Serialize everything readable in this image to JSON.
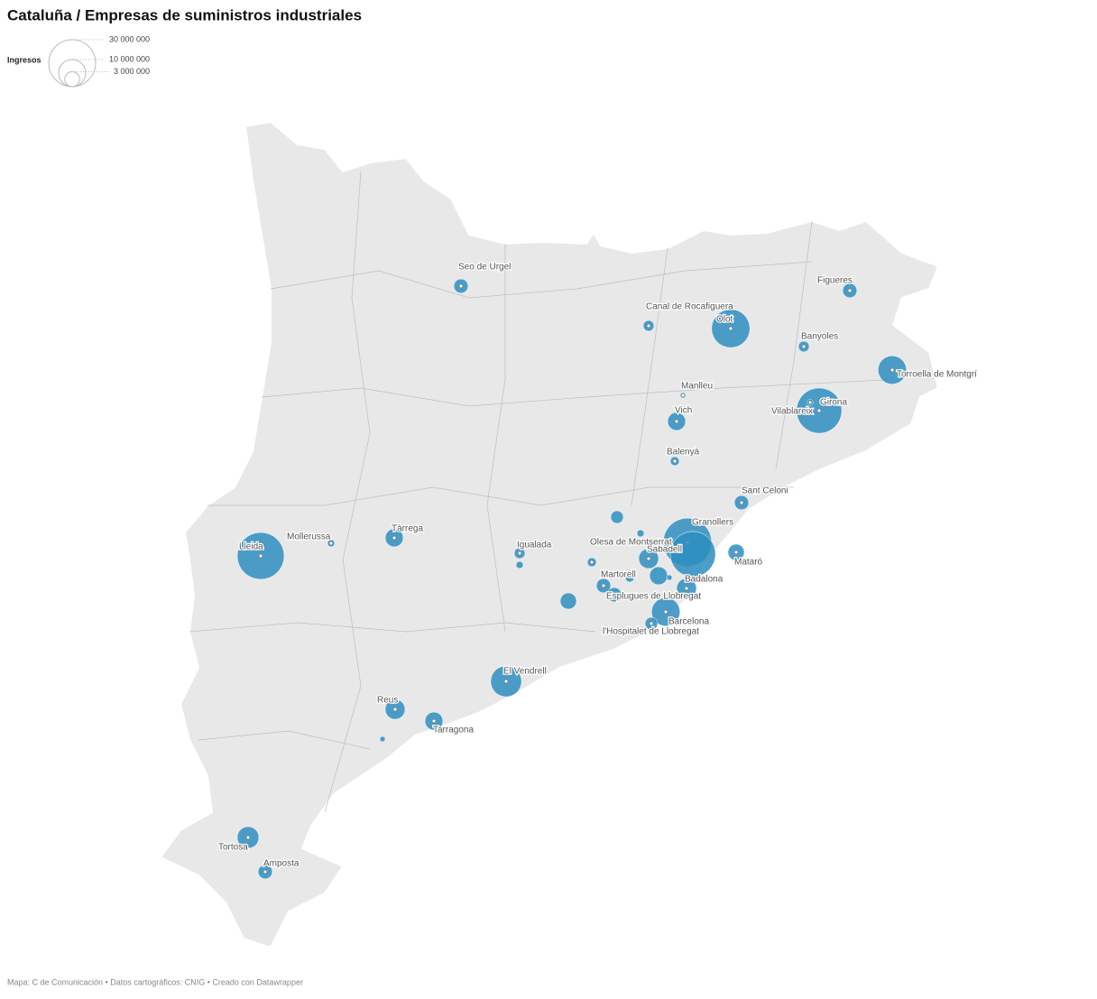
{
  "chart_data": {
    "type": "bubble-map",
    "title": "Cataluña / Empresas de suministros industriales",
    "color": "#2e8ec0",
    "legend": {
      "title": "Ingresos",
      "sizes": [
        {
          "value": 30000000,
          "label": "30 000 000"
        },
        {
          "value": 10000000,
          "label": "10 000 000"
        },
        {
          "value": 3000000,
          "label": "3 000 000"
        }
      ]
    },
    "places": [
      {
        "name": "Lleida",
        "value": 30000000
      },
      {
        "name": "Granollers",
        "value": 32000000
      },
      {
        "name": null,
        "value": 28000000
      },
      {
        "name": "Girona",
        "value": 28000000
      },
      {
        "name": "Vilablareix",
        "value": 500000
      },
      {
        "name": "Olot",
        "value": 20000000
      },
      {
        "name": "Torroella de Montgrí",
        "value": 11000000
      },
      {
        "name": "El Vendrell",
        "value": 13000000
      },
      {
        "name": "Barcelona",
        "value": 11000000
      },
      {
        "name": "Tortosa",
        "value": 6400000
      },
      {
        "name": "Badalona",
        "value": 5400000
      },
      {
        "name": "Sabadell",
        "value": 5400000
      },
      {
        "name": "Mataró",
        "value": 3600000
      },
      {
        "name": "Reus",
        "value": 5400000
      },
      {
        "name": "Tarragona",
        "value": 4400000
      },
      {
        "name": "Tàrrega",
        "value": 4400000
      },
      {
        "name": "Vich",
        "value": 4400000
      },
      {
        "name": null,
        "value": 4400000
      },
      {
        "name": null,
        "value": 3600000
      },
      {
        "name": "Sant Celoni",
        "value": 2800000
      },
      {
        "name": "Seo de Urgel",
        "value": 2800000
      },
      {
        "name": "Figueres",
        "value": 2800000
      },
      {
        "name": "Amposta",
        "value": 2800000
      },
      {
        "name": "Martorell",
        "value": 2800000
      },
      {
        "name": "Esplugues de Llobregat",
        "value": 2800000
      },
      {
        "name": null,
        "value": 2200000
      },
      {
        "name": "Igualada",
        "value": 1600000
      },
      {
        "name": "Canal de Rocafiguera",
        "value": 1600000
      },
      {
        "name": "Banyoles",
        "value": 1600000
      },
      {
        "name": "l'Hospitalet de Llobregat",
        "value": 2200000
      },
      {
        "name": "Balenyà",
        "value": 1100000
      },
      {
        "name": null,
        "value": 700000
      },
      {
        "name": null,
        "value": 700000
      },
      {
        "name": "Mollerussa",
        "value": 700000
      },
      {
        "name": "Olesa de Montserrat",
        "value": 1100000
      },
      {
        "name": "Manlleu",
        "value": 400000
      },
      {
        "name": null,
        "value": 400000
      },
      {
        "name": null,
        "value": 1100000
      },
      {
        "name": null,
        "value": 400000
      }
    ],
    "source": "Mapa: C de Comunicación • Datos cartográficos: CNIG  • Creado con Datawrapper"
  }
}
